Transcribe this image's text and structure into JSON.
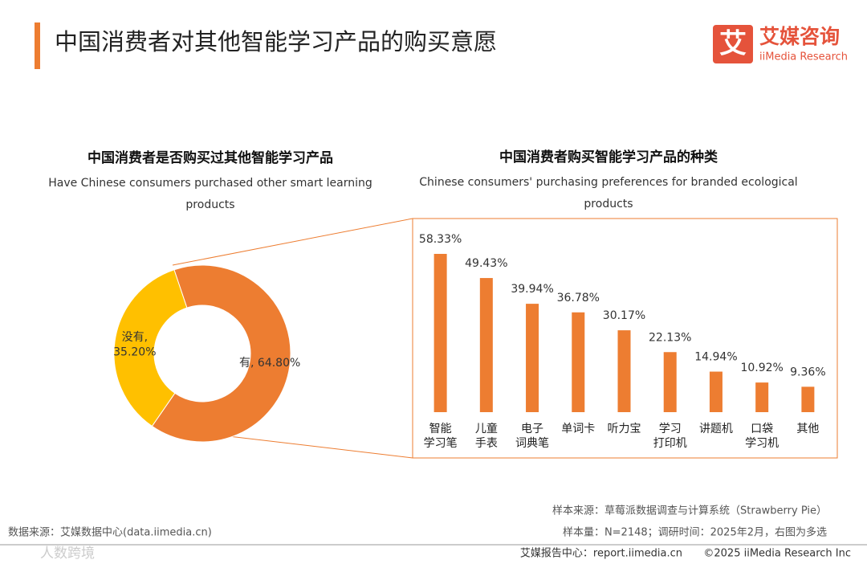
{
  "header": {
    "title": "中国消费者对其他智能学习产品的购买意愿",
    "logo_mark": "艾",
    "logo_name": "艾媒咨询",
    "logo_en": "iiMedia Research"
  },
  "chart_data": [
    {
      "type": "donut",
      "title": "中国消费者是否购买过其他智能学习产品",
      "subtitle": "Have Chinese consumers purchased other smart learning products",
      "values": [
        64.8,
        35.2
      ],
      "value_labels": [
        "有, 64.80%",
        "没有, 35.20%"
      ],
      "colors": [
        "#ED7D31",
        "#FFC000"
      ]
    },
    {
      "type": "bar",
      "title": "中国消费者购买智能学习产品的种类",
      "subtitle": "Chinese consumers' purchasing preferences for branded ecological products",
      "categories": [
        "智能\n学习笔",
        "儿童\n手表",
        "电子\n词典笔",
        "单词卡",
        "听力宝",
        "学习\n打印机",
        "讲题机",
        "口袋\n学习机",
        "其他"
      ],
      "values": [
        58.33,
        49.43,
        39.94,
        36.78,
        30.17,
        22.13,
        14.94,
        10.92,
        9.36
      ],
      "value_labels": [
        "58.33%",
        "49.43%",
        "39.94%",
        "36.78%",
        "30.17%",
        "22.13%",
        "14.94%",
        "10.92%",
        "9.36%"
      ],
      "color": "#ED7D31"
    }
  ],
  "footer": {
    "source": "数据来源：艾媒数据中心(data.iimedia.cn)",
    "sample_source": "样本来源：草莓派数据调查与计算系统（Strawberry Pie）",
    "sample_size": "样本量：N=2148；调研时间：2025年2月，右图为多选",
    "report": "艾媒报告中心：report.iimedia.cn",
    "copyright": "©2025  iiMedia Research  Inc",
    "watermark": "人数跨境"
  }
}
